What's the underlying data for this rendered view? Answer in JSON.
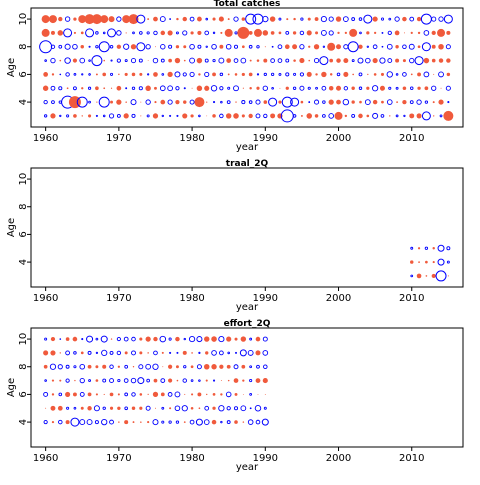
{
  "colors": {
    "positive": "#0000ff",
    "negative": "#f05a3c",
    "frame": "#000000"
  },
  "chart_data": [
    {
      "type": "scatter",
      "title": "Total catches",
      "xlabel": "year",
      "ylabel": "Age",
      "xlim": [
        1958,
        2017
      ],
      "ylim": [
        2.2,
        10.8
      ],
      "xticks": [
        "1960",
        "1970",
        "1980",
        "1990",
        "2000",
        "2010"
      ],
      "yticks": [
        "4",
        "6",
        "8",
        "10"
      ],
      "years": [
        1960,
        2015
      ],
      "ages": [
        3,
        4,
        5,
        6,
        7,
        8,
        9,
        10
      ],
      "big_points": [
        {
          "x": 1960,
          "y": 10,
          "r": 4,
          "s": -1
        },
        {
          "x": 1961,
          "y": 10,
          "r": 4,
          "s": -1
        },
        {
          "x": 1965,
          "y": 10,
          "r": 4,
          "s": -1
        },
        {
          "x": 1966,
          "y": 10,
          "r": 5,
          "s": -1
        },
        {
          "x": 1967,
          "y": 10,
          "r": 5,
          "s": -1
        },
        {
          "x": 1968,
          "y": 10,
          "r": 4,
          "s": -1
        },
        {
          "x": 1969,
          "y": 10,
          "r": 3,
          "s": -1
        },
        {
          "x": 1971,
          "y": 10,
          "r": 4,
          "s": -1
        },
        {
          "x": 1972,
          "y": 10,
          "r": 5,
          "s": -1
        },
        {
          "x": 1973,
          "y": 10,
          "r": 4,
          "s": 1
        },
        {
          "x": 1988,
          "y": 10,
          "r": 5,
          "s": 1
        },
        {
          "x": 1989,
          "y": 10,
          "r": 5,
          "s": 1
        },
        {
          "x": 2004,
          "y": 10,
          "r": 4,
          "s": 1
        },
        {
          "x": 2012,
          "y": 10,
          "r": 5,
          "s": 1
        },
        {
          "x": 2015,
          "y": 10,
          "r": 4,
          "s": 1
        },
        {
          "x": 1960,
          "y": 9,
          "r": 4,
          "s": -1
        },
        {
          "x": 1963,
          "y": 9,
          "r": 4,
          "s": 1
        },
        {
          "x": 1966,
          "y": 9,
          "r": 4,
          "s": 1
        },
        {
          "x": 1969,
          "y": 9,
          "r": 4,
          "s": 1
        },
        {
          "x": 1985,
          "y": 9,
          "r": 4,
          "s": -1
        },
        {
          "x": 1987,
          "y": 9,
          "r": 6,
          "s": -1
        },
        {
          "x": 1989,
          "y": 9,
          "r": 4,
          "s": -1
        },
        {
          "x": 2002,
          "y": 9,
          "r": 4,
          "s": -1
        },
        {
          "x": 2014,
          "y": 9,
          "r": 4,
          "s": -1
        },
        {
          "x": 1960,
          "y": 8,
          "r": 6,
          "s": 1
        },
        {
          "x": 1968,
          "y": 8,
          "r": 5,
          "s": 1
        },
        {
          "x": 1973,
          "y": 8,
          "r": 4,
          "s": 1
        },
        {
          "x": 1999,
          "y": 8,
          "r": 4,
          "s": -1
        },
        {
          "x": 2002,
          "y": 8,
          "r": 5,
          "s": 1
        },
        {
          "x": 2012,
          "y": 8,
          "r": 4,
          "s": 1
        },
        {
          "x": 1967,
          "y": 7,
          "r": 5,
          "s": 1
        },
        {
          "x": 1998,
          "y": 7,
          "r": 4,
          "s": 1
        },
        {
          "x": 2011,
          "y": 7,
          "r": 4,
          "s": 1
        },
        {
          "x": 1963,
          "y": 4,
          "r": 6,
          "s": 1
        },
        {
          "x": 1964,
          "y": 4,
          "r": 6,
          "s": -1
        },
        {
          "x": 1965,
          "y": 4,
          "r": 5,
          "s": 1
        },
        {
          "x": 1968,
          "y": 4,
          "r": 5,
          "s": 1
        },
        {
          "x": 1981,
          "y": 4,
          "r": 5,
          "s": -1
        },
        {
          "x": 1991,
          "y": 4,
          "r": 4,
          "s": 1
        },
        {
          "x": 1993,
          "y": 4,
          "r": 5,
          "s": 1
        },
        {
          "x": 1994,
          "y": 4,
          "r": 4,
          "s": 1
        },
        {
          "x": 1993,
          "y": 3,
          "r": 6,
          "s": 1
        },
        {
          "x": 2000,
          "y": 3,
          "r": 4,
          "s": -1
        },
        {
          "x": 2012,
          "y": 3,
          "r": 4,
          "s": 1
        },
        {
          "x": 2015,
          "y": 3,
          "r": 5,
          "s": -1
        }
      ]
    },
    {
      "type": "scatter",
      "title": "traal_2Q",
      "xlabel": "year",
      "ylabel": "Age",
      "xlim": [
        1958,
        2017
      ],
      "ylim": [
        2.2,
        10.8
      ],
      "xticks": [
        "1960",
        "1970",
        "1980",
        "1990",
        "2000",
        "2010"
      ],
      "yticks": [
        "4",
        "6",
        "8",
        "10"
      ],
      "years": [
        2010,
        2015
      ],
      "ages": [
        3,
        4,
        5
      ],
      "big_points": [
        {
          "x": 2014,
          "y": 3,
          "r": 5,
          "s": 1
        },
        {
          "x": 2014,
          "y": 5,
          "r": 3,
          "s": 1
        },
        {
          "x": 2014,
          "y": 4,
          "r": 3,
          "s": 1
        }
      ]
    },
    {
      "type": "scatter",
      "title": "effort_2Q",
      "xlabel": "year",
      "ylabel": "Age",
      "xlim": [
        1958,
        2017
      ],
      "ylim": [
        2.2,
        10.8
      ],
      "xticks": [
        "1960",
        "1970",
        "1980",
        "1990",
        "2000",
        "2010"
      ],
      "yticks": [
        "4",
        "6",
        "8",
        "10"
      ],
      "years": [
        1960,
        1990
      ],
      "ages": [
        4,
        5,
        6,
        7,
        8,
        9,
        10
      ],
      "big_points": [
        {
          "x": 1964,
          "y": 4,
          "r": 4,
          "s": 1
        },
        {
          "x": 1981,
          "y": 4,
          "r": 3,
          "s": 1
        },
        {
          "x": 1990,
          "y": 4,
          "r": 3,
          "s": 1
        },
        {
          "x": 1968,
          "y": 10,
          "r": 3,
          "s": 1
        },
        {
          "x": 1966,
          "y": 10,
          "r": 3,
          "s": 1
        },
        {
          "x": 1987,
          "y": 9,
          "r": 3,
          "s": 1
        },
        {
          "x": 1973,
          "y": 7,
          "r": 3,
          "s": 1
        },
        {
          "x": 1968,
          "y": 8,
          "r": 2,
          "s": -1
        },
        {
          "x": 1963,
          "y": 4,
          "r": 2,
          "s": -1
        }
      ]
    }
  ]
}
